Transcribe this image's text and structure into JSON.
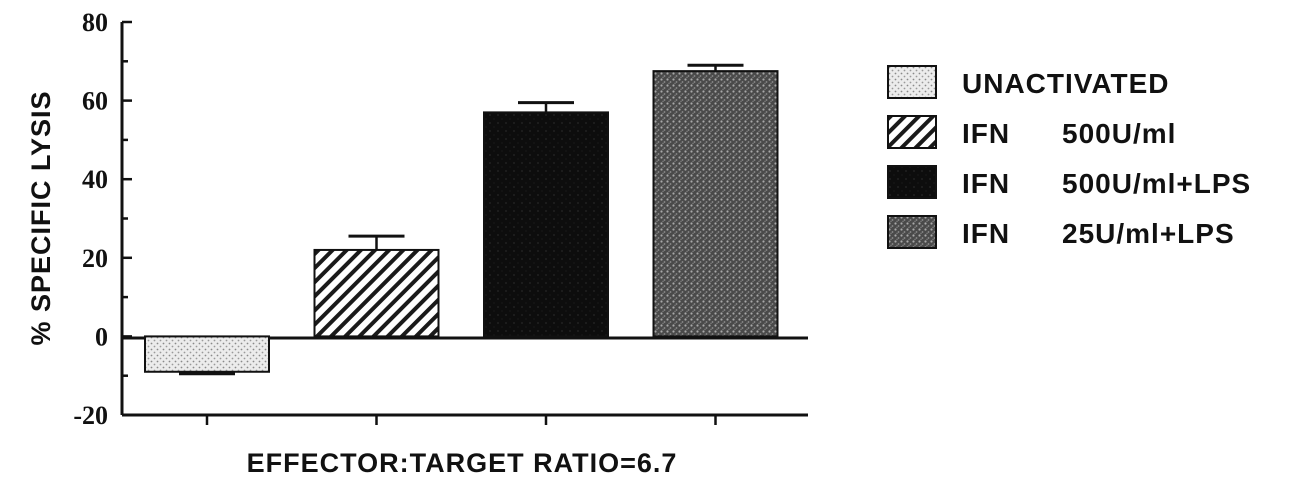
{
  "chart_data": {
    "type": "bar",
    "title": "",
    "xlabel": "EFFECTOR:TARGET RATIO=6.7",
    "ylabel": "% SPECIFIC LYSIS",
    "ylim": [
      -20,
      80
    ],
    "yticks": [
      "80",
      "60",
      "40",
      "20",
      "0",
      "-20"
    ],
    "ytick_values": [
      80,
      60,
      40,
      20,
      0,
      -20
    ],
    "grid": false,
    "legend_position": "right",
    "series": [
      {
        "name_prefix": "",
        "name_dose": "UNACTIVATED",
        "value": -9,
        "error": 0.5,
        "pattern": "light-stipple",
        "color": "#d8d8d8"
      },
      {
        "name_prefix": "IFN",
        "name_dose": "500U/ml",
        "value": 22,
        "error": 3.5,
        "pattern": "hatch",
        "color": "#222222"
      },
      {
        "name_prefix": "IFN",
        "name_dose": "500U/ml+LPS",
        "value": 57,
        "error": 2.5,
        "pattern": "black",
        "color": "#0d0d0d"
      },
      {
        "name_prefix": "IFN",
        "name_dose": "25U/ml+LPS",
        "value": 67.5,
        "error": 1.5,
        "pattern": "grey-stipple",
        "color": "#6e6e6e"
      }
    ]
  }
}
